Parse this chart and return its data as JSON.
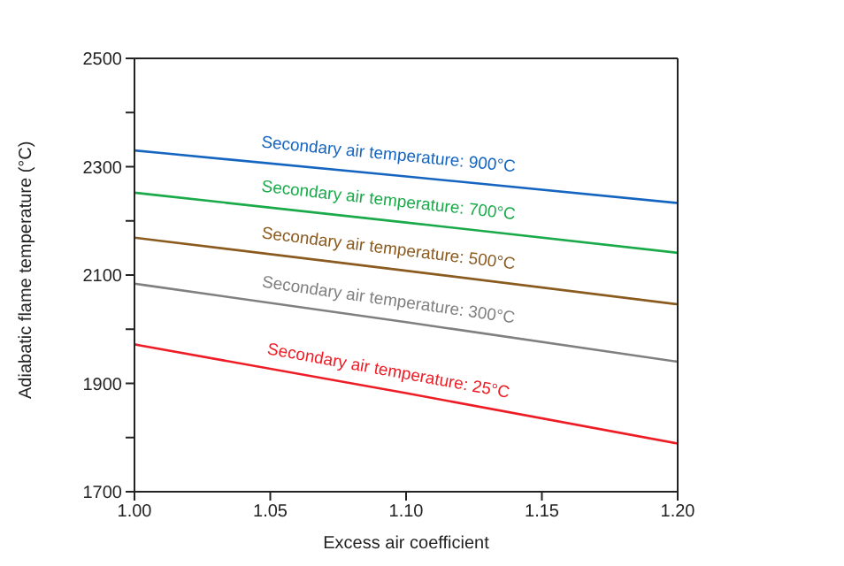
{
  "chart_data": {
    "type": "line",
    "xlabel": "Excess air coefficient",
    "ylabel": "Adiabatic flame temperature (°C)",
    "x": [
      1.0,
      1.1,
      1.2
    ],
    "series": [
      {
        "name": "Secondary air temperature: 900°C",
        "color": "#1565c0",
        "values": [
          2330,
          2282,
          2233
        ]
      },
      {
        "name": "Secondary air temperature: 700°C",
        "color": "#1aaa4a",
        "values": [
          2252,
          2197,
          2141
        ]
      },
      {
        "name": "Secondary air temperature: 500°C",
        "color": "#8b5a1e",
        "values": [
          2169,
          2108,
          2046
        ]
      },
      {
        "name": "Secondary air temperature: 300°C",
        "color": "#808080",
        "values": [
          2084,
          2013,
          1940
        ]
      },
      {
        "name": "Secondary air temperature: 25°C",
        "color": "#ee1c25",
        "values": [
          1972,
          1882,
          1789
        ]
      }
    ],
    "xlim": [
      1.0,
      1.2
    ],
    "xticks": [
      {
        "value": 1.0,
        "label": "1.00"
      },
      {
        "value": 1.05,
        "label": "1.05"
      },
      {
        "value": 1.1,
        "label": "1.10"
      },
      {
        "value": 1.15,
        "label": "1.15"
      },
      {
        "value": 1.2,
        "label": "1.20"
      }
    ],
    "ylim": [
      1700,
      2500
    ],
    "yticks": [
      1700,
      {
        "value": 1800,
        "label": null
      },
      1900,
      {
        "value": 2000,
        "label": null
      },
      2100,
      {
        "value": 2200,
        "label": null
      },
      2300,
      {
        "value": 2400,
        "label": null
      },
      2500
    ],
    "grid": false,
    "legend": false,
    "marker": "none",
    "line_style": "solid"
  }
}
